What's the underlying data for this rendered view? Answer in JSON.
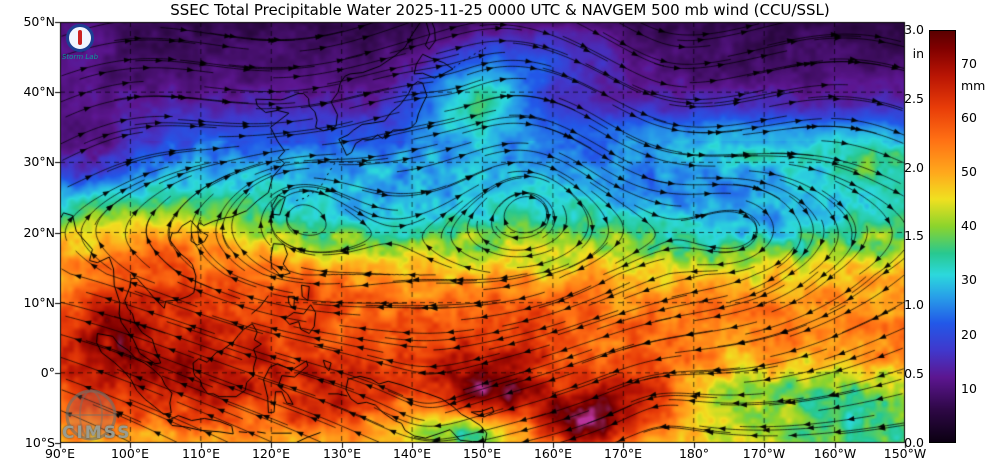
{
  "meta": {
    "product": "SSEC Total Precipitable Water",
    "valid_time": "2025-11-25 0000 UTC",
    "wind_source": "NAVGEM 500 mb wind",
    "credit": "CCU/SSL"
  },
  "title": "SSEC Total Precipitable Water  2025-11-25 0000 UTC & NAVGEM 500 mb wind (CCU/SSL)",
  "map": {
    "lat_labels": [
      "50°N",
      "40°N",
      "30°N",
      "20°N",
      "10°N",
      "0°",
      "10°S"
    ],
    "lon_labels": [
      "90°E",
      "100°E",
      "110°E",
      "120°E",
      "130°E",
      "140°E",
      "150°E",
      "160°E",
      "170°E",
      "180°",
      "170°W",
      "160°W",
      "150°W"
    ],
    "watermark": "CIMSS",
    "storm_lab_label": "Storm Lab"
  },
  "colorbar": {
    "unit_left": "in",
    "unit_right": "mm",
    "ticks_in": [
      "3.0",
      "2.5",
      "2.0",
      "1.5",
      "1.0",
      "0.5",
      "0.0"
    ],
    "ticks_mm": [
      "70",
      "60",
      "50",
      "40",
      "30",
      "20",
      "10"
    ],
    "max_mm": 76.2,
    "gradient_stops": [
      {
        "mm": 0,
        "color": "#0b0012"
      },
      {
        "mm": 6,
        "color": "#2e0846"
      },
      {
        "mm": 12,
        "color": "#5c1690"
      },
      {
        "mm": 17,
        "color": "#4038cc"
      },
      {
        "mm": 22,
        "color": "#2258e8"
      },
      {
        "mm": 27,
        "color": "#28a0e8"
      },
      {
        "mm": 31,
        "color": "#2cd8dc"
      },
      {
        "mm": 35,
        "color": "#28c890"
      },
      {
        "mm": 40,
        "color": "#8cd42c"
      },
      {
        "mm": 45,
        "color": "#f0e020"
      },
      {
        "mm": 50,
        "color": "#ffa81c"
      },
      {
        "mm": 56,
        "color": "#ff7014"
      },
      {
        "mm": 62,
        "color": "#e83c08"
      },
      {
        "mm": 68,
        "color": "#b81404"
      },
      {
        "mm": 73,
        "color": "#800000"
      },
      {
        "mm": 76.2,
        "color": "#5a0000"
      }
    ]
  }
}
